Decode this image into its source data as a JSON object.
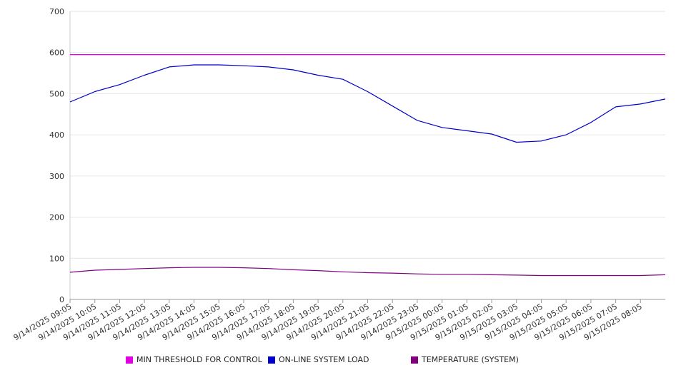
{
  "chart_data": {
    "type": "line",
    "title": "",
    "xlabel": "",
    "ylabel": "",
    "ylim": [
      0,
      700
    ],
    "yticks": [
      0,
      100,
      200,
      300,
      400,
      500,
      600,
      700
    ],
    "grid": true,
    "legend_position": "bottom",
    "x_tick_labels": [
      "9/14/2025 09:05",
      "9/14/2025 10:05",
      "9/14/2025 11:05",
      "9/14/2025 12:05",
      "9/14/2025 13:05",
      "9/14/2025 14:05",
      "9/14/2025 15:05",
      "9/14/2025 16:05",
      "9/14/2025 17:05",
      "9/14/2025 18:05",
      "9/14/2025 19:05",
      "9/14/2025 20:05",
      "9/14/2025 21:05",
      "9/14/2025 22:05",
      "9/14/2025 23:05",
      "9/15/2025 00:05",
      "9/15/2025 01:05",
      "9/15/2025 02:05",
      "9/15/2025 03:05",
      "9/15/2025 04:05",
      "9/15/2025 05:05",
      "9/15/2025 06:05",
      "9/15/2025 07:05",
      "9/15/2025 08:05"
    ],
    "x_hours": [
      0,
      1,
      2,
      3,
      4,
      5,
      6,
      7,
      8,
      9,
      10,
      11,
      12,
      13,
      14,
      15,
      16,
      17,
      18,
      19,
      20,
      21,
      22,
      23,
      24
    ],
    "series": [
      {
        "name": "MIN THRESHOLD FOR CONTROL",
        "color": "#e000e0",
        "values": [
          595,
          595,
          595,
          595,
          595,
          595,
          595,
          595,
          595,
          595,
          595,
          595,
          595,
          595,
          595,
          595,
          595,
          595,
          595,
          595,
          595,
          595,
          595,
          595,
          595
        ]
      },
      {
        "name": "ON-LINE SYSTEM LOAD",
        "color": "#0000cc",
        "values": [
          480,
          505,
          522,
          545,
          565,
          570,
          570,
          568,
          565,
          558,
          545,
          535,
          505,
          470,
          435,
          418,
          410,
          402,
          382,
          385,
          400,
          430,
          468,
          475,
          487
        ]
      },
      {
        "name": "TEMPERATURE (SYSTEM)",
        "color": "#800080",
        "values": [
          66,
          71,
          73,
          75,
          77,
          78,
          78,
          77,
          75,
          72,
          70,
          67,
          65,
          64,
          62,
          61,
          61,
          60,
          59,
          58,
          58,
          58,
          58,
          58,
          60
        ]
      }
    ]
  }
}
